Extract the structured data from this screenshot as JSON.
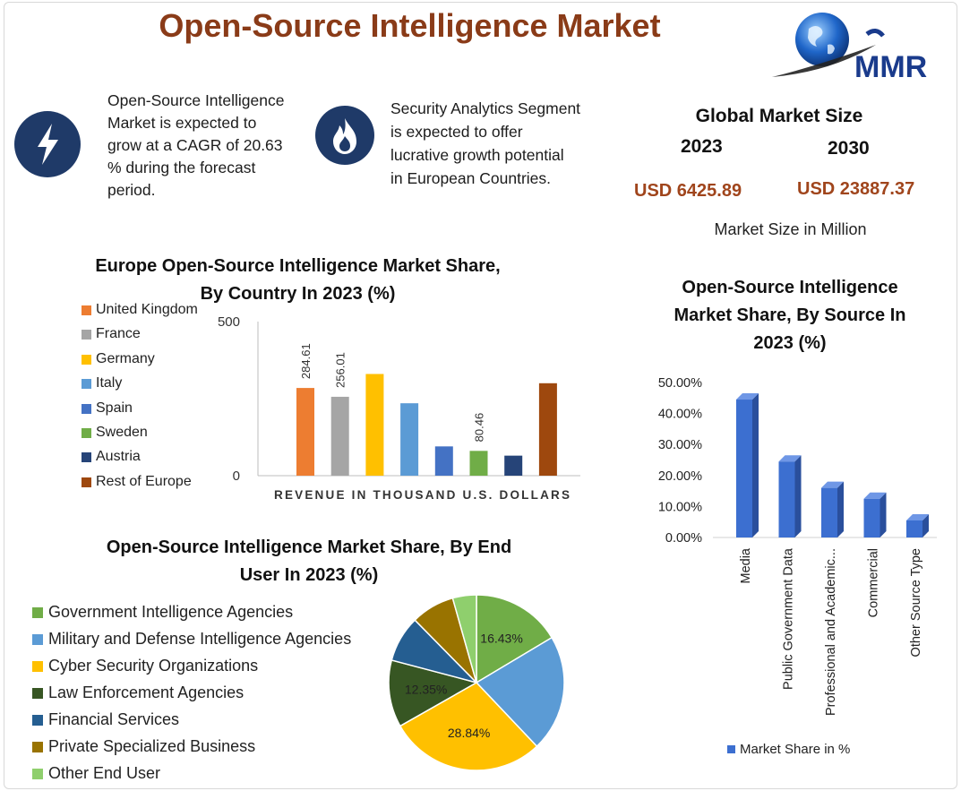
{
  "header": {
    "title": "Open-Source Intelligence Market",
    "logo_text": "MMR"
  },
  "highlights": [
    {
      "icon": "lightning-bolt-icon",
      "lines": [
        "Open-Source Intelligence",
        "Market is expected to",
        "grow at a CAGR of 20.63",
        "% during the forecast",
        "period."
      ]
    },
    {
      "icon": "flame-icon",
      "lines": [
        "Security Analytics Segment",
        "is expected to offer",
        "lucrative growth potential",
        "in European Countries."
      ]
    }
  ],
  "market_size": {
    "title": "Global Market Size",
    "year_start": "2023",
    "year_end": "2030",
    "value_start": "USD 6425.89",
    "value_end": "USD 23887.37",
    "unit": "Market Size in Million"
  },
  "colors": {
    "title": "#8a3b18",
    "usd": "#a0451c",
    "icon_bg": "#1f3a68",
    "bar_blue": "#3c6fd0"
  },
  "chart_data": [
    {
      "type": "bar",
      "title_lines": [
        "Europe Open-Source Intelligence Market Share,",
        "By Country In 2023 (%)"
      ],
      "xlabel": "REVENUE IN THOUSAND U.S. DOLLARS",
      "ylabel": "",
      "ylim": [
        0,
        500
      ],
      "y_ticks": [
        "0",
        "500"
      ],
      "grid": false,
      "legend_position": "left",
      "categories": [
        "United Kingdom",
        "France",
        "Germany",
        "Italy",
        "Spain",
        "Sweden",
        "Austria",
        "Rest of Europe"
      ],
      "values": [
        284.61,
        256.01,
        330,
        235,
        95,
        80.46,
        65,
        300
      ],
      "data_labels": [
        "284.61",
        "256.01",
        "",
        "",
        "",
        "80.46",
        "",
        ""
      ],
      "colors": [
        "#ed7d31",
        "#a5a5a5",
        "#ffc000",
        "#5b9bd5",
        "#4472c4",
        "#70ad47",
        "#264478",
        "#9e480e"
      ]
    },
    {
      "type": "pie",
      "title_lines": [
        "Open-Source Intelligence Market Share, By End",
        "User In 2023 (%)"
      ],
      "legend_position": "left",
      "categories": [
        "Government Intelligence Agencies",
        "Military and Defense Intelligence Agencies",
        "Cyber Security Organizations",
        "Law Enforcement Agencies",
        "Financial Services",
        "Private Specialized Business",
        "Other End User"
      ],
      "values": [
        16.43,
        21.5,
        28.84,
        12.35,
        8.5,
        8.0,
        4.38
      ],
      "data_labels": [
        "16.43%",
        "",
        "28.84%",
        "12.35%",
        "",
        "",
        ""
      ],
      "colors": [
        "#70ad47",
        "#5b9bd5",
        "#ffc000",
        "#375623",
        "#255e91",
        "#997300",
        "#8fcf6d"
      ]
    },
    {
      "type": "bar",
      "title_lines": [
        "Open-Source Intelligence",
        "Market Share, By Source In",
        "2023 (%)"
      ],
      "xlabel": "",
      "ylabel": "",
      "ylim": [
        0,
        50
      ],
      "y_ticks": [
        "0.00%",
        "10.00%",
        "20.00%",
        "30.00%",
        "40.00%",
        "50.00%"
      ],
      "grid": false,
      "categories": [
        "Media",
        "Public Government Data",
        "Professional and Academic...",
        "Commercial",
        "Other Source Type"
      ],
      "series": [
        {
          "name": "Market Share in %",
          "values": [
            44.5,
            24.5,
            16,
            12.5,
            5.5
          ]
        }
      ],
      "legend_position": "bottom",
      "color": "#3c6fd0"
    }
  ]
}
